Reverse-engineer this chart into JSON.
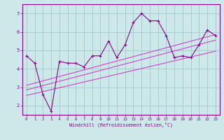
{
  "xlabel": "Windchill (Refroidissement éolien,°C)",
  "bg_color": "#cce8e8",
  "grid_color": "#aacccc",
  "line_color": "#880088",
  "line_color2": "#cc44cc",
  "xlim": [
    -0.5,
    23.5
  ],
  "ylim": [
    1.5,
    7.5
  ],
  "xticks": [
    0,
    1,
    2,
    3,
    4,
    5,
    6,
    7,
    8,
    9,
    10,
    11,
    12,
    13,
    14,
    15,
    16,
    17,
    18,
    19,
    20,
    21,
    22,
    23
  ],
  "yticks": [
    2,
    3,
    4,
    5,
    6,
    7
  ],
  "curve1_x": [
    0,
    1,
    2,
    3,
    4,
    5,
    6,
    7,
    8,
    9,
    10,
    11,
    12,
    13,
    14,
    15,
    16,
    17,
    18,
    19,
    20,
    21,
    22,
    23
  ],
  "curve1_y": [
    4.7,
    4.3,
    2.6,
    1.7,
    4.4,
    4.3,
    4.3,
    4.1,
    4.7,
    4.7,
    5.5,
    4.6,
    5.3,
    6.5,
    7.0,
    6.6,
    6.6,
    5.8,
    4.6,
    4.7,
    4.6,
    5.3,
    6.1,
    5.8
  ],
  "line1_x": [
    0,
    23
  ],
  "line1_y": [
    2.55,
    4.95
  ],
  "line2_x": [
    0,
    23
  ],
  "line2_y": [
    2.85,
    5.55
  ],
  "line3_x": [
    0,
    23
  ],
  "line3_y": [
    3.1,
    5.85
  ]
}
